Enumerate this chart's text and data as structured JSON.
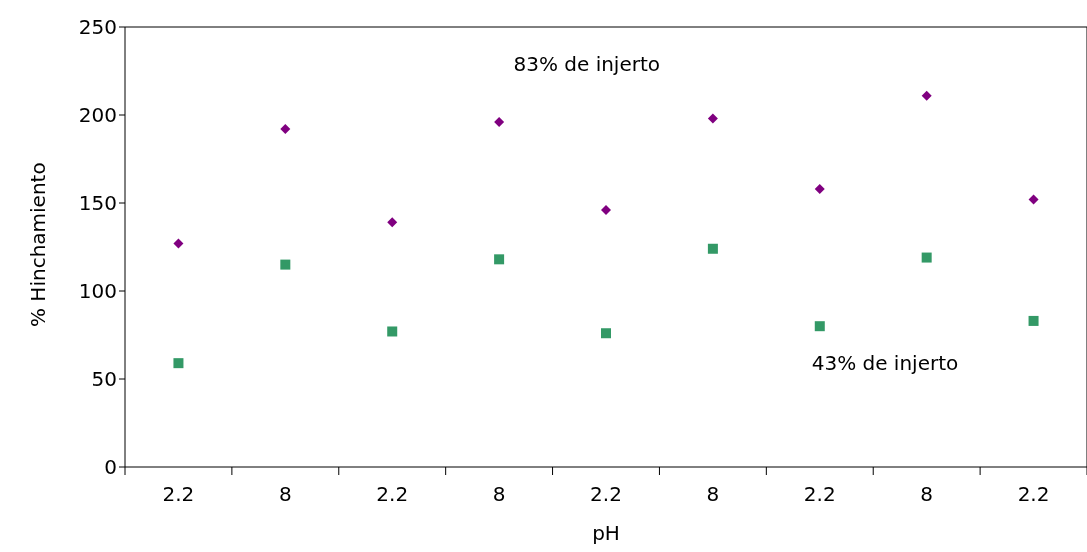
{
  "chart_data": {
    "type": "scatter",
    "xlabel": "pH",
    "ylabel": "% Hinchamiento",
    "categories": [
      "2.2",
      "8",
      "2.2",
      "8",
      "2.2",
      "8",
      "2.2",
      "8",
      "2.2"
    ],
    "series": [
      {
        "name": "83% de injerto",
        "color": "#800080",
        "marker": "diamond",
        "values": [
          127,
          192,
          139,
          196,
          146,
          198,
          158,
          211,
          152
        ]
      },
      {
        "name": "43% de injerto",
        "color": "#339966",
        "marker": "square",
        "values": [
          59,
          115,
          77,
          118,
          76,
          124,
          80,
          119,
          83
        ]
      }
    ],
    "ylim": [
      0,
      250
    ],
    "yticks": [
      0,
      50,
      100,
      150,
      200,
      250
    ],
    "legend": false
  }
}
